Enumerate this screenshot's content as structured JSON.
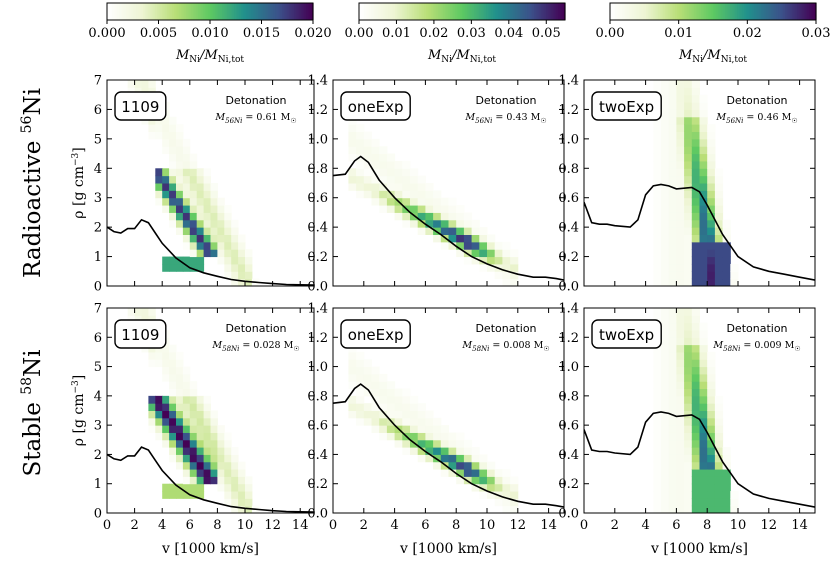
{
  "colormap": [
    "#ffffff",
    "#eef5d4",
    "#b8de76",
    "#5ec962",
    "#21918c",
    "#3b528b",
    "#440154"
  ],
  "colorbars": [
    {
      "ticks": [
        "0.000",
        "0.005",
        "0.010",
        "0.015",
        "0.020"
      ],
      "label_main": "M",
      "label_sub1": "Ni",
      "label_mid": "/M",
      "label_sub2": "Ni,tot"
    },
    {
      "ticks": [
        "0.00",
        "0.01",
        "0.02",
        "0.03",
        "0.04",
        "0.05"
      ],
      "label_main": "M",
      "label_sub1": "Ni",
      "label_mid": "/M",
      "label_sub2": "Ni,tot"
    },
    {
      "ticks": [
        "0.00",
        "0.01",
        "0.02",
        "0.03"
      ],
      "label_main": "M",
      "label_sub1": "Ni",
      "label_mid": "/M",
      "label_sub2": "Ni,tot"
    }
  ],
  "row_labels": [
    {
      "text": "Radioactive ",
      "sup": "56",
      "elem": "Ni"
    },
    {
      "text": "Stable ",
      "sup": "58",
      "elem": "Ni"
    }
  ],
  "axes": {
    "x_ticks": [
      "0",
      "2",
      "4",
      "6",
      "8",
      "10",
      "12",
      "14"
    ],
    "x_label": "v [1000 km/s]",
    "y_label_main": "ρ [g cm",
    "y_label_sup": "−3",
    "y_label_end": "]",
    "y_ticks_left": [
      "0",
      "1",
      "2",
      "3",
      "4",
      "5",
      "6",
      "7"
    ],
    "y_ticks_other": [
      "0.0",
      "0.2",
      "0.4",
      "0.6",
      "0.8",
      "1.0",
      "1.2",
      "1.4"
    ]
  },
  "chart_data": [
    {
      "type": "heatmap",
      "model": "1109",
      "row": "Radioactive 56Ni",
      "title": "Detonation",
      "mass_label": "M",
      "mass_sub": "56Ni",
      "mass_value": " = 0.61 M",
      "xlim": [
        0,
        15
      ],
      "ylim": [
        0,
        7
      ],
      "profile_x": [
        0,
        0.5,
        1,
        1.5,
        2,
        2.5,
        3,
        3.5,
        4,
        5,
        6,
        7,
        8,
        9,
        10,
        11,
        12,
        13,
        14,
        15
      ],
      "profile_y": [
        2.0,
        1.85,
        1.8,
        1.95,
        1.95,
        2.25,
        2.15,
        1.8,
        1.45,
        0.95,
        0.62,
        0.45,
        0.33,
        0.22,
        0.16,
        0.12,
        0.08,
        0.05,
        0.04,
        0.03
      ]
    },
    {
      "type": "heatmap",
      "model": "oneExp",
      "row": "Radioactive 56Ni",
      "title": "Detonation",
      "mass_label": "M",
      "mass_sub": "56Ni",
      "mass_value": " = 0.43 M",
      "xlim": [
        0,
        15
      ],
      "ylim": [
        0,
        1.4
      ],
      "profile_x": [
        0,
        0.8,
        1.4,
        1.8,
        2.3,
        3,
        4,
        5,
        6,
        7,
        8,
        9,
        10,
        11,
        12,
        13,
        13.8,
        14.5,
        15
      ],
      "profile_y": [
        0.75,
        0.76,
        0.85,
        0.88,
        0.84,
        0.72,
        0.6,
        0.5,
        0.42,
        0.35,
        0.27,
        0.2,
        0.15,
        0.11,
        0.08,
        0.06,
        0.06,
        0.05,
        0.04
      ]
    },
    {
      "type": "heatmap",
      "model": "twoExp",
      "row": "Radioactive 56Ni",
      "title": "Detonation",
      "mass_label": "M",
      "mass_sub": "56Ni",
      "mass_value": " = 0.46 M",
      "xlim": [
        0,
        15
      ],
      "ylim": [
        0,
        1.4
      ],
      "profile_x": [
        0,
        0.5,
        1,
        1.5,
        2,
        3,
        3.5,
        4,
        4.5,
        5,
        5.5,
        6,
        7,
        7.5,
        8,
        9,
        10,
        11,
        12,
        13,
        14,
        15
      ],
      "profile_y": [
        0.57,
        0.43,
        0.42,
        0.42,
        0.41,
        0.4,
        0.45,
        0.62,
        0.68,
        0.69,
        0.68,
        0.66,
        0.67,
        0.64,
        0.55,
        0.35,
        0.2,
        0.13,
        0.1,
        0.08,
        0.06,
        0.04
      ]
    },
    {
      "type": "heatmap",
      "model": "1109",
      "row": "Stable 58Ni",
      "title": "Detonation",
      "mass_label": "M",
      "mass_sub": "58Ni",
      "mass_value": " = 0.028 M",
      "xlim": [
        0,
        15
      ],
      "ylim": [
        0,
        7
      ],
      "profile_x": [
        0,
        0.5,
        1,
        1.5,
        2,
        2.5,
        3,
        3.5,
        4,
        5,
        6,
        7,
        8,
        9,
        10,
        11,
        12,
        13,
        14,
        15
      ],
      "profile_y": [
        2.0,
        1.85,
        1.8,
        1.95,
        1.95,
        2.25,
        2.15,
        1.8,
        1.45,
        0.95,
        0.62,
        0.45,
        0.33,
        0.22,
        0.16,
        0.12,
        0.08,
        0.05,
        0.04,
        0.03
      ]
    },
    {
      "type": "heatmap",
      "model": "oneExp",
      "row": "Stable 58Ni",
      "title": "Detonation",
      "mass_label": "M",
      "mass_sub": "58Ni",
      "mass_value": " = 0.008 M",
      "xlim": [
        0,
        15
      ],
      "ylim": [
        0,
        1.4
      ],
      "profile_x": [
        0,
        0.8,
        1.4,
        1.8,
        2.3,
        3,
        4,
        5,
        6,
        7,
        8,
        9,
        10,
        11,
        12,
        13,
        13.8,
        14.5,
        15
      ],
      "profile_y": [
        0.75,
        0.76,
        0.85,
        0.88,
        0.84,
        0.72,
        0.6,
        0.5,
        0.42,
        0.35,
        0.27,
        0.2,
        0.15,
        0.11,
        0.08,
        0.06,
        0.06,
        0.05,
        0.04
      ]
    },
    {
      "type": "heatmap",
      "model": "twoExp",
      "row": "Stable 58Ni",
      "title": "Detonation",
      "mass_label": "M",
      "mass_sub": "58Ni",
      "mass_value": " = 0.009 M",
      "xlim": [
        0,
        15
      ],
      "ylim": [
        0,
        1.4
      ],
      "profile_x": [
        0,
        0.5,
        1,
        1.5,
        2,
        3,
        3.5,
        4,
        4.5,
        5,
        5.5,
        6,
        7,
        7.5,
        8,
        9,
        10,
        11,
        12,
        13,
        14,
        15
      ],
      "profile_y": [
        0.57,
        0.43,
        0.42,
        0.42,
        0.41,
        0.4,
        0.45,
        0.62,
        0.68,
        0.69,
        0.68,
        0.66,
        0.67,
        0.64,
        0.55,
        0.35,
        0.2,
        0.13,
        0.1,
        0.08,
        0.06,
        0.04
      ]
    }
  ]
}
